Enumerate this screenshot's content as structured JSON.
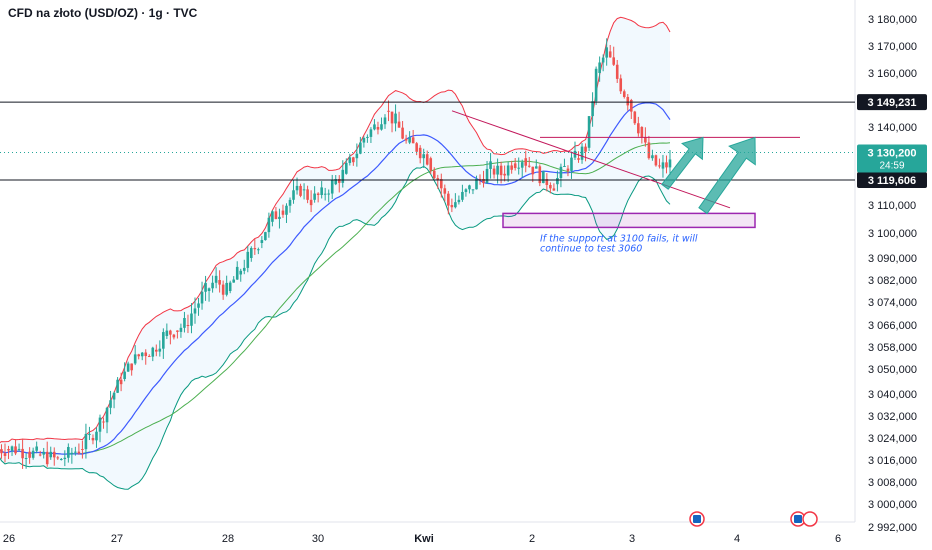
{
  "chart_data": {
    "type": "candlestick",
    "title": "CFD na złoto (USD/OZ) · 1g · TVC",
    "x_ticks": [
      "26",
      "27",
      "28",
      "30",
      "Kwi",
      "2",
      "3",
      "4",
      "6"
    ],
    "y_ticks": [
      "3 180,000",
      "3 170,000",
      "3 160,000",
      "3 140,000",
      "3 130,000",
      "3 110,000",
      "3 100,000",
      "3 090,000",
      "3 082,000",
      "3 074,000",
      "3 066,000",
      "3 058,000",
      "3 050,000",
      "3 040,000",
      "3 032,000",
      "3 024,000",
      "3 016,000",
      "3 008,000",
      "3 000,000",
      "2 992,000"
    ],
    "y_ticks_values": [
      3180,
      3170,
      3160,
      3140,
      3130,
      3110,
      3100,
      3090,
      3082,
      3074,
      3066,
      3058,
      3050,
      3040,
      3032,
      3024,
      3016,
      3008,
      3000,
      2992
    ],
    "candle_close_path": [
      3020,
      3020,
      3019,
      3018,
      3017,
      3016,
      3018,
      3020,
      3024,
      3030,
      3038,
      3046,
      3052,
      3056,
      3057,
      3062,
      3064,
      3066,
      3072,
      3078,
      3082,
      3078,
      3084,
      3090,
      3096,
      3104,
      3108,
      3112,
      3116,
      3112,
      3114,
      3118,
      3122,
      3128,
      3136,
      3140,
      3146,
      3142,
      3134,
      3132,
      3128,
      3120,
      3110,
      3112,
      3116,
      3120,
      3124,
      3122,
      3126,
      3128,
      3124,
      3120,
      3118,
      3124,
      3128,
      3132,
      3160,
      3168,
      3158,
      3150,
      3140,
      3128,
      3124,
      3126
    ],
    "price_lines": [
      {
        "value": 3149.231,
        "label": "3 149,231"
      },
      {
        "value": 3119.606,
        "label": "3 119,606"
      }
    ],
    "current_price": {
      "value": 3130.2,
      "label": "3 130,200",
      "countdown": "24:59"
    },
    "support_box": {
      "low": 3102,
      "high": 3107
    },
    "annotation": [
      "If the support at 3100 fails, it will",
      "continue to test 3060"
    ],
    "event_markers": [
      {
        "x_tick": "4"
      },
      {
        "x_tick": "6"
      }
    ],
    "colors": {
      "up": "#26a69a",
      "down": "#ef5350",
      "band_upper": "#f23645",
      "band_lower": "#089981",
      "ma_fast": "#3d5afe",
      "ma_slow": "#4caf50",
      "trend_line": "#c2185b",
      "box": "#9c27b0",
      "tag_bg": "#131722",
      "arrow": "#26a69a",
      "current": "#26a69a"
    }
  }
}
